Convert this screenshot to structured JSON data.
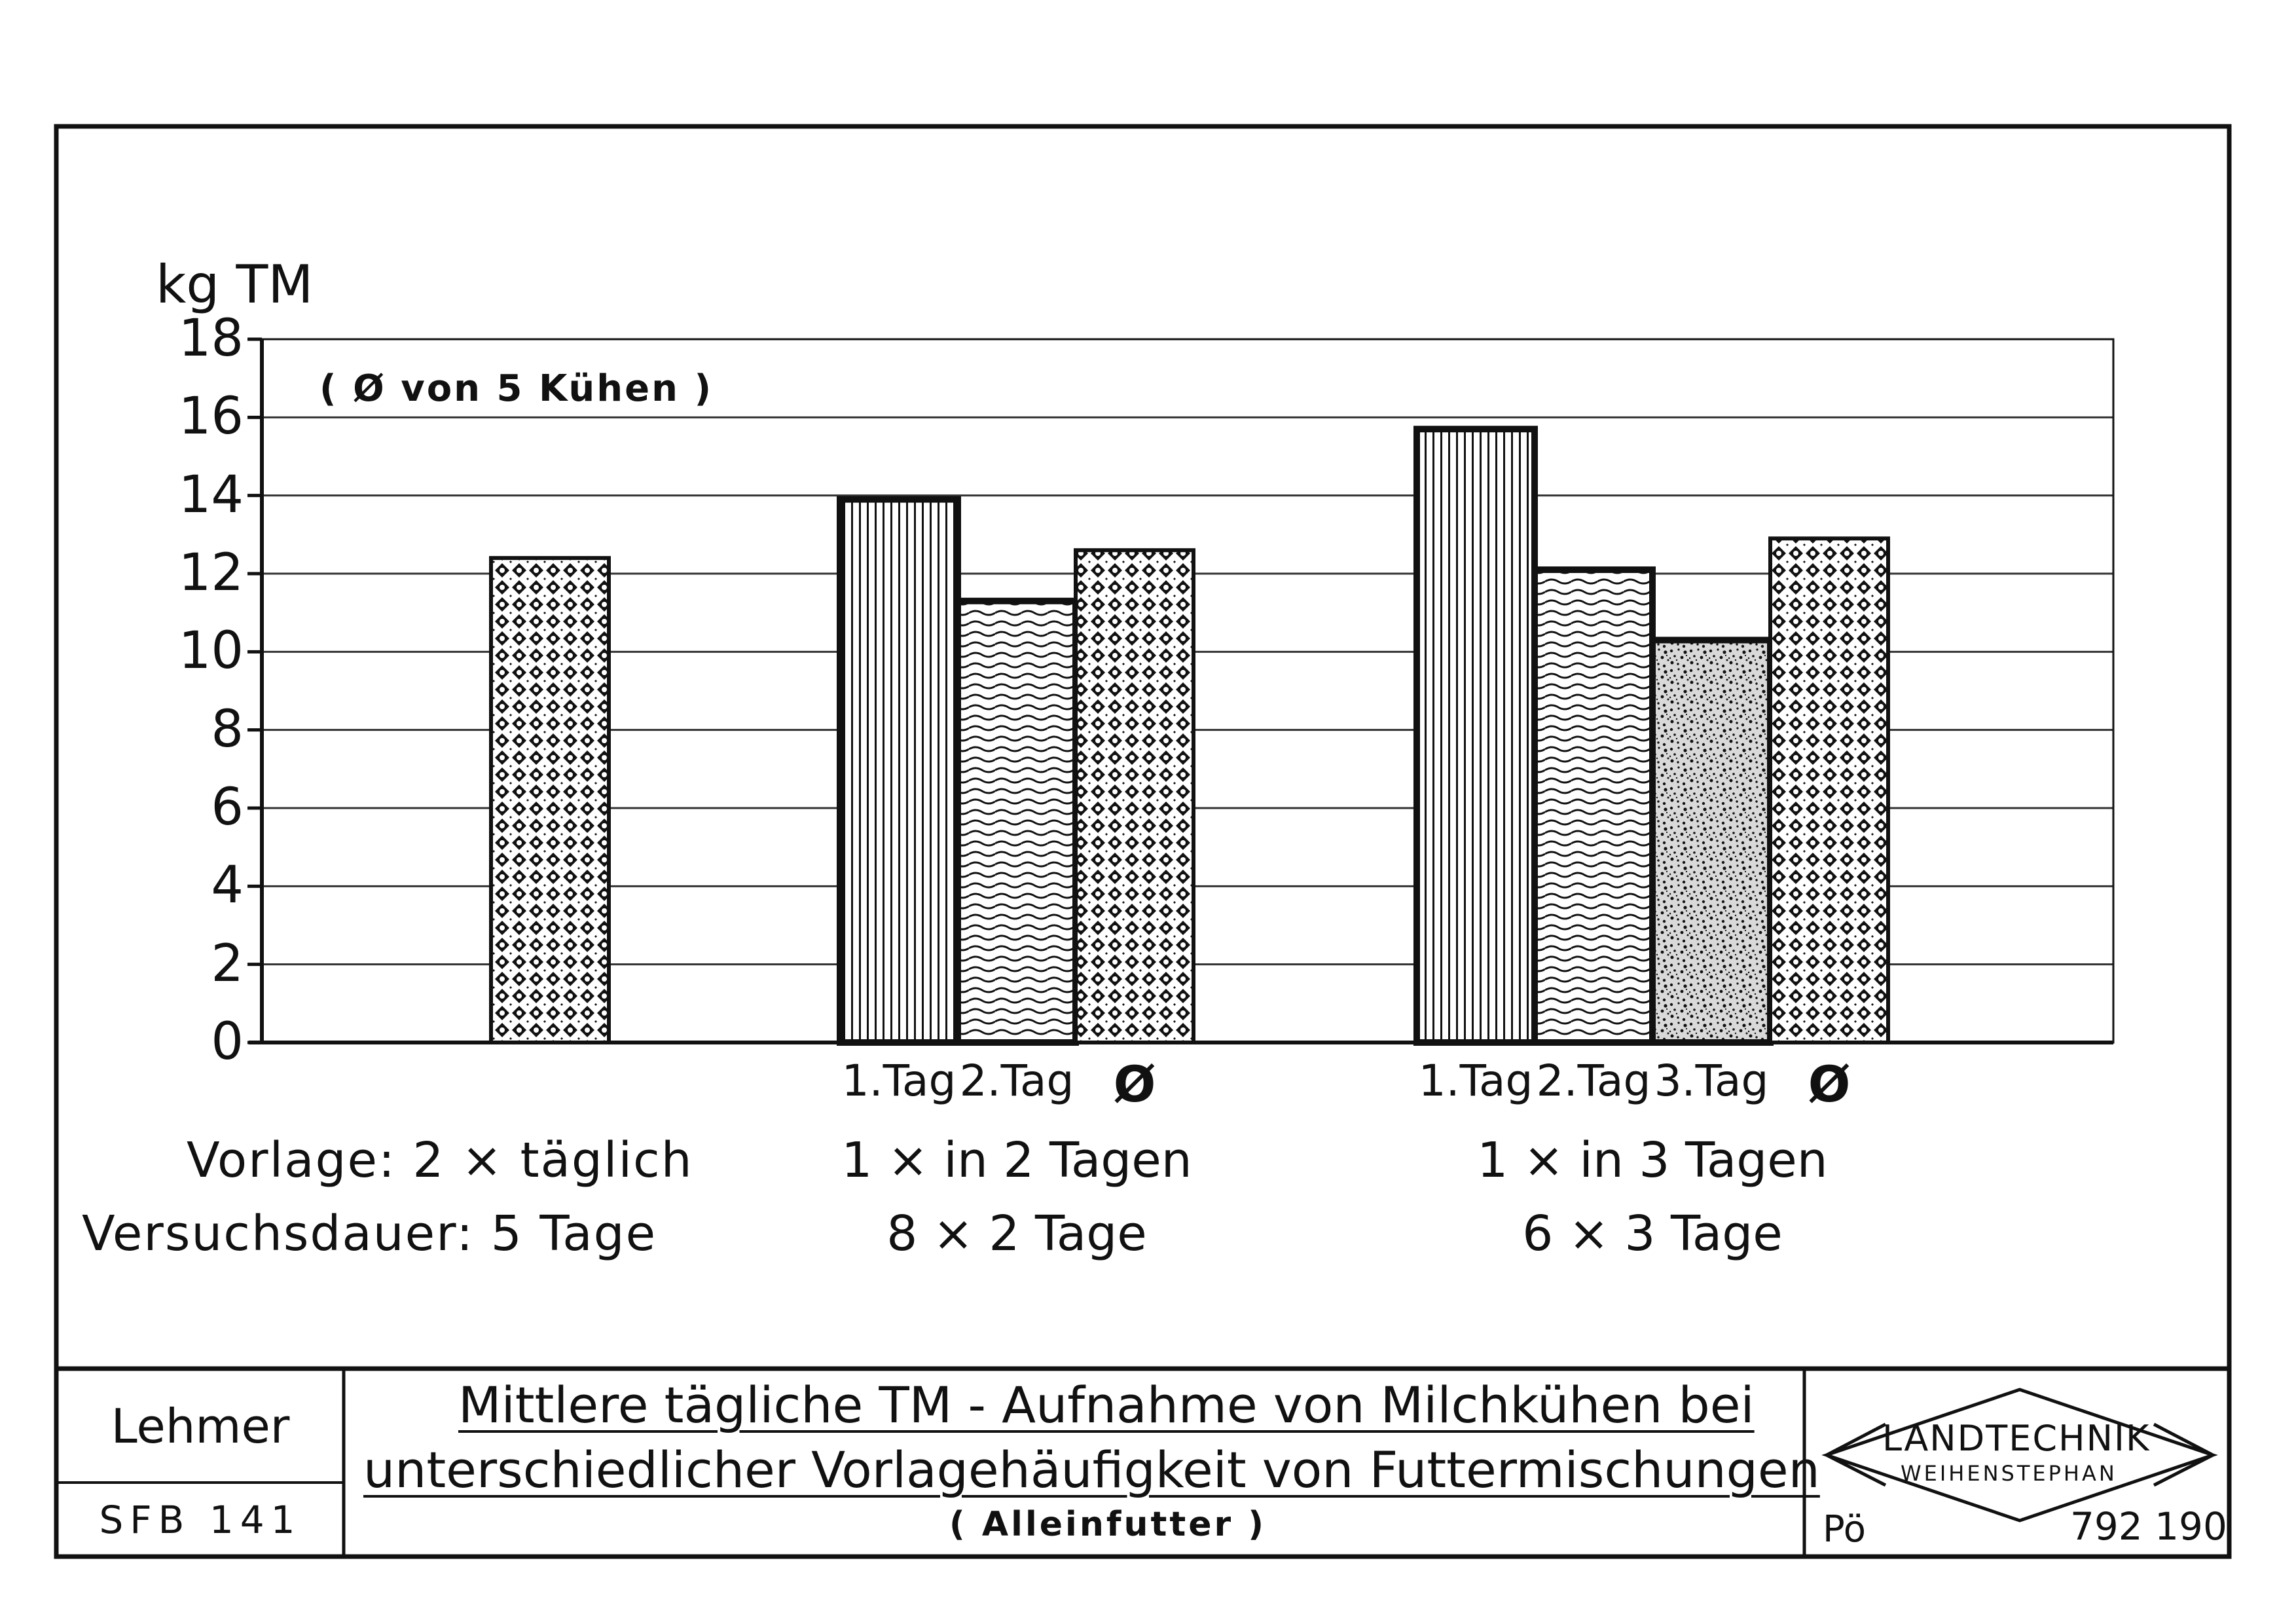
{
  "chart_data": {
    "type": "bar",
    "ylabel": "kg TM",
    "ylim": [
      0,
      18
    ],
    "yticks": [
      "0",
      "2",
      "4",
      "6",
      "8",
      "10",
      "12",
      "14",
      "16",
      "18"
    ],
    "note": "( Ø von 5 Kühen )",
    "grid": true,
    "pattern_legend": {
      "cross": "Ø",
      "vertical-lines": "1.Tag",
      "waves": "2.Tag",
      "speckle": "3.Tag"
    },
    "groups": [
      {
        "line1": "Vorlage:  2 × täglich",
        "line2": "Versuchsdauer:  5 Tage",
        "bars": [
          {
            "label": "",
            "value": 12.4,
            "pattern": "cross"
          }
        ]
      },
      {
        "line1": "1 × in 2 Tagen",
        "line2": "8 × 2 Tage",
        "bars": [
          {
            "label": "1.Tag",
            "value": 13.9,
            "pattern": "vertical-lines"
          },
          {
            "label": "2.Tag",
            "value": 11.3,
            "pattern": "waves"
          },
          {
            "label": "Ø",
            "value": 12.6,
            "pattern": "cross"
          }
        ]
      },
      {
        "line1": "1 × in 3 Tagen",
        "line2": "6 × 3 Tage",
        "bars": [
          {
            "label": "1.Tag",
            "value": 15.7,
            "pattern": "vertical-lines"
          },
          {
            "label": "2.Tag",
            "value": 12.1,
            "pattern": "waves"
          },
          {
            "label": "3.Tag",
            "value": 10.3,
            "pattern": "speckle"
          },
          {
            "label": "Ø",
            "value": 12.9,
            "pattern": "cross"
          }
        ]
      }
    ]
  },
  "footer": {
    "author": "Lehmer",
    "project": "SFB 141",
    "title_line1": "Mittlere tägliche TM - Aufnahme von Milchkühen bei",
    "title_line2": "unterschiedlicher Vorlagehäufigkeit von Futtermischungen",
    "subtitle": "( Alleinfutter )",
    "logo_top": "LANDTECHNIK",
    "logo_bottom": "WEIHENSTEPHAN",
    "drawer": "Pö",
    "number": "792 190"
  },
  "colors": {
    "ink": "#111111",
    "paper": "#ffffff",
    "grid": "#333333"
  }
}
